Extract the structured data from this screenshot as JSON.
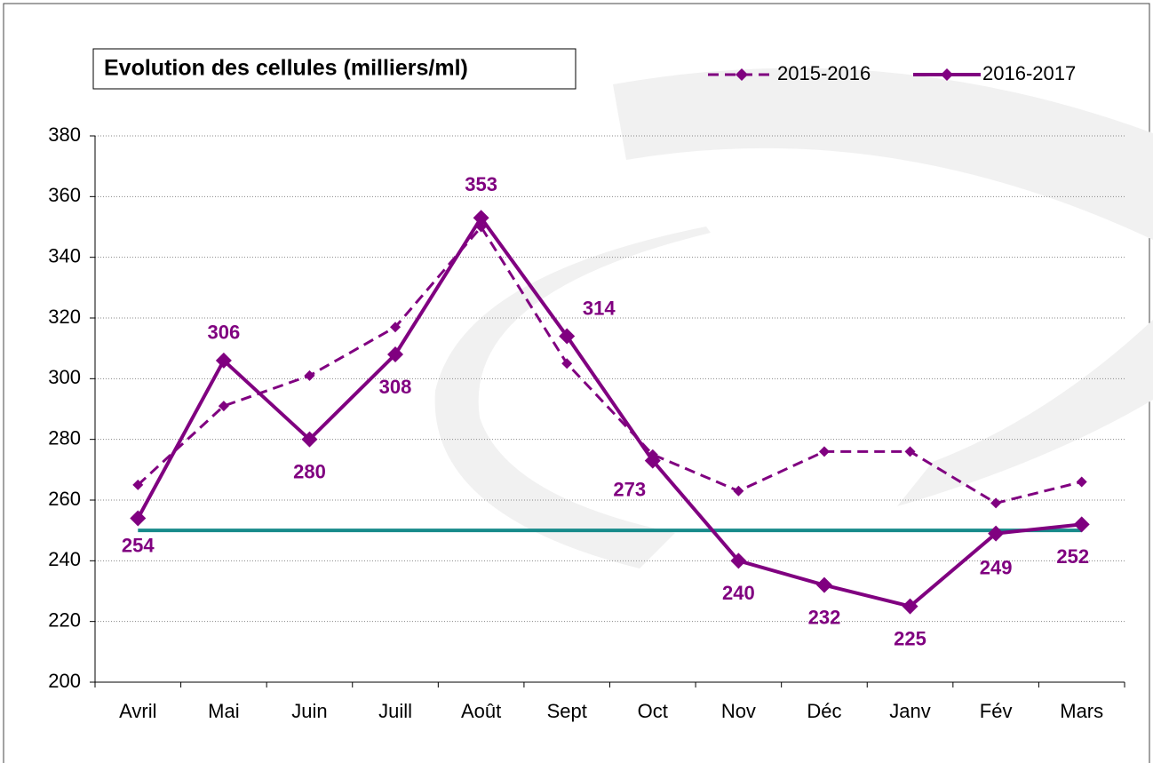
{
  "chart_data": {
    "type": "line",
    "title": "Evolution des cellules (milliers/ml)",
    "categories": [
      "Avril",
      "Mai",
      "Juin",
      "Juill",
      "Août",
      "Sept",
      "Oct",
      "Nov",
      "Déc",
      "Janv",
      "Fév",
      "Mars"
    ],
    "series": [
      {
        "name": "2015-2016",
        "color": "#800080",
        "dashed": true,
        "values": [
          265,
          291,
          301,
          317,
          350,
          305,
          275,
          263,
          276,
          276,
          259,
          266
        ]
      },
      {
        "name": "2016-2017",
        "color": "#800080",
        "dashed": false,
        "values": [
          254,
          306,
          280,
          308,
          353,
          314,
          273,
          240,
          232,
          225,
          249,
          252
        ]
      }
    ],
    "reference_line": {
      "value": 250,
      "color": "#178a8a"
    },
    "ylim": [
      200,
      380
    ],
    "yticks": [
      200,
      220,
      240,
      260,
      280,
      300,
      320,
      340,
      360,
      380
    ],
    "grid": true,
    "legend": "top-right"
  }
}
